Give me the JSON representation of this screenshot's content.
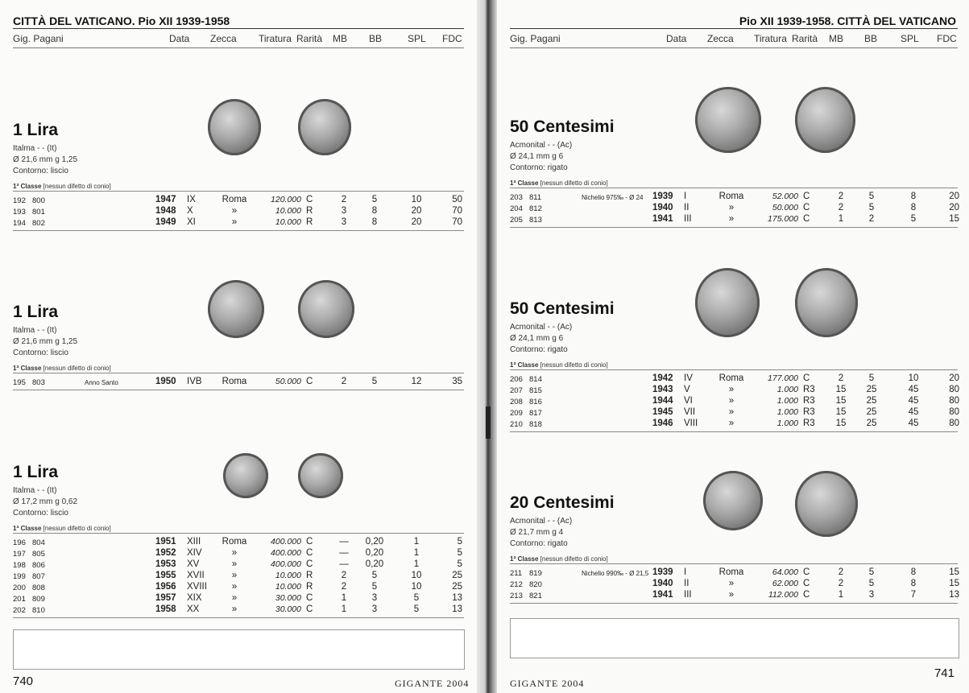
{
  "columns": {
    "gig_pagani": "Gig. Pagani",
    "data": "Data",
    "zecca": "Zecca",
    "tiratura": "Tiratura",
    "rarita": "Rarità",
    "mb": "MB",
    "bb": "BB",
    "spl": "SPL",
    "fdc": "FDC"
  },
  "left": {
    "running_head": "CITTÀ DEL VATICANO. Pio XII 1939-1958",
    "page_number": "740",
    "publisher": "GIGANTE 2004",
    "sections": [
      {
        "title": "1 Lira",
        "metal": "Italma  - -  (It)",
        "size": "Ø 21,6 mm  g 1,25",
        "edge": "Contorno: liscio",
        "class_label": "1ª Classe",
        "class_note": "[nessun difetto di conio]",
        "rows": [
          [
            "192",
            "800",
            "",
            "1947",
            "IX",
            "Roma",
            "120.000",
            "C",
            "2",
            "5",
            "10",
            "50"
          ],
          [
            "193",
            "801",
            "",
            "1948",
            "X",
            "»",
            "10.000",
            "R",
            "3",
            "8",
            "20",
            "70"
          ],
          [
            "194",
            "802",
            "",
            "1949",
            "XI",
            "»",
            "10.000",
            "R",
            "3",
            "8",
            "20",
            "70"
          ]
        ]
      },
      {
        "title": "1 Lira",
        "metal": "Italma  - -  (It)",
        "size": "Ø 21,6 mm  g 1,25",
        "edge": "Contorno: liscio",
        "class_label": "1ª Classe",
        "class_note": "[nessun difetto di conio]",
        "rows": [
          [
            "195",
            "803",
            "Anno Santo",
            "1950",
            "IVB",
            "Roma",
            "50.000",
            "C",
            "2",
            "5",
            "12",
            "35"
          ]
        ]
      },
      {
        "title": "1 Lira",
        "metal": "Italma  - -  (It)",
        "size": "Ø 17,2 mm  g 0,62",
        "edge": "Contorno: liscio",
        "class_label": "1ª Classe",
        "class_note": "[nessun difetto di conio]",
        "rows": [
          [
            "196",
            "804",
            "",
            "1951",
            "XIII",
            "Roma",
            "400.000",
            "C",
            "—",
            "0,20",
            "1",
            "5"
          ],
          [
            "197",
            "805",
            "",
            "1952",
            "XIV",
            "»",
            "400.000",
            "C",
            "—",
            "0,20",
            "1",
            "5"
          ],
          [
            "198",
            "806",
            "",
            "1953",
            "XV",
            "»",
            "400.000",
            "C",
            "—",
            "0,20",
            "1",
            "5"
          ],
          [
            "199",
            "807",
            "",
            "1955",
            "XVII",
            "»",
            "10.000",
            "R",
            "2",
            "5",
            "10",
            "25"
          ],
          [
            "200",
            "808",
            "",
            "1956",
            "XVIII",
            "»",
            "10.000",
            "R",
            "2",
            "5",
            "10",
            "25"
          ],
          [
            "201",
            "809",
            "",
            "1957",
            "XIX",
            "»",
            "30.000",
            "C",
            "1",
            "3",
            "5",
            "13"
          ],
          [
            "202",
            "810",
            "",
            "1958",
            "XX",
            "»",
            "30.000",
            "C",
            "1",
            "3",
            "5",
            "13"
          ]
        ]
      }
    ]
  },
  "right": {
    "running_head": "Pio XII 1939-1958. CITTÀ DEL VATICANO",
    "page_number": "741",
    "publisher": "GIGANTE 2004",
    "sections": [
      {
        "title": "50 Centesimi",
        "metal": "Acmonital  - -  (Ac)",
        "size": "Ø 24,1 mm  g 6",
        "edge": "Contorno: rigato",
        "class_label": "1ª Classe",
        "class_note": "[nessun difetto di conio]",
        "rows": [
          [
            "203",
            "811",
            "Nichelio 975‰ - Ø 24",
            "1939",
            "I",
            "Roma",
            "52.000",
            "C",
            "2",
            "5",
            "8",
            "20"
          ],
          [
            "204",
            "812",
            "",
            "1940",
            "II",
            "»",
            "50.000",
            "C",
            "2",
            "5",
            "8",
            "20"
          ],
          [
            "205",
            "813",
            "",
            "1941",
            "III",
            "»",
            "175.000",
            "C",
            "1",
            "2",
            "5",
            "15"
          ]
        ]
      },
      {
        "title": "50 Centesimi",
        "metal": "Acmonital  - -  (Ac)",
        "size": "Ø 24,1 mm  g 6",
        "edge": "Contorno: rigato",
        "class_label": "1ª Classe",
        "class_note": "[nessun difetto di conio]",
        "rows": [
          [
            "206",
            "814",
            "",
            "1942",
            "IV",
            "Roma",
            "177.000",
            "C",
            "2",
            "5",
            "10",
            "20"
          ],
          [
            "207",
            "815",
            "",
            "1943",
            "V",
            "»",
            "1.000",
            "R3",
            "15",
            "25",
            "45",
            "80"
          ],
          [
            "208",
            "816",
            "",
            "1944",
            "VI",
            "»",
            "1.000",
            "R3",
            "15",
            "25",
            "45",
            "80"
          ],
          [
            "209",
            "817",
            "",
            "1945",
            "VII",
            "»",
            "1.000",
            "R3",
            "15",
            "25",
            "45",
            "80"
          ],
          [
            "210",
            "818",
            "",
            "1946",
            "VIII",
            "»",
            "1.000",
            "R3",
            "15",
            "25",
            "45",
            "80"
          ]
        ]
      },
      {
        "title": "20 Centesimi",
        "metal": "Acmonital  - -  (Ac)",
        "size": "Ø 21,7 mm  g 4",
        "edge": "Contorno: rigato",
        "class_label": "1ª Classe",
        "class_note": "[nessun difetto di conio]",
        "rows": [
          [
            "211",
            "819",
            "Nichelio 990‰ - Ø 21,5",
            "1939",
            "I",
            "Roma",
            "64.000",
            "C",
            "2",
            "5",
            "8",
            "15"
          ],
          [
            "212",
            "820",
            "",
            "1940",
            "II",
            "»",
            "62.000",
            "C",
            "2",
            "5",
            "8",
            "15"
          ],
          [
            "213",
            "821",
            "",
            "1941",
            "III",
            "»",
            "112.000",
            "C",
            "1",
            "3",
            "7",
            "13"
          ]
        ]
      }
    ]
  }
}
